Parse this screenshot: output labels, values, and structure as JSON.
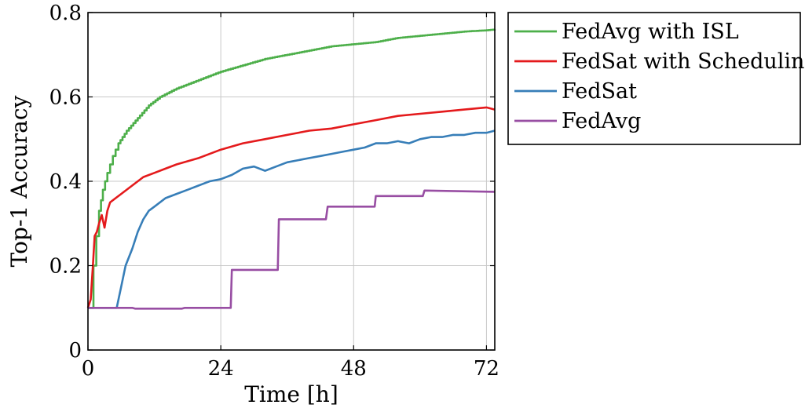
{
  "chart_data": {
    "type": "line",
    "xlabel": "Time [h]",
    "ylabel": "Top-1 Accuracy",
    "xlim": [
      0,
      73.5
    ],
    "ylim": [
      0,
      0.8
    ],
    "xticks": [
      0,
      24,
      48,
      72
    ],
    "yticks": [
      0,
      0.2,
      0.4,
      0.6,
      0.8
    ],
    "xtick_labels": [
      "0",
      "24",
      "48",
      "72"
    ],
    "ytick_labels": [
      "0",
      "0.2",
      "0.4",
      "0.6",
      "0.8"
    ],
    "grid": true,
    "legend_position": "outside-right",
    "series": [
      {
        "name": "FedAvg with ISL",
        "color": "#4daf4a",
        "step": true,
        "points": [
          [
            0,
            0.1
          ],
          [
            0.7,
            0.1
          ],
          [
            1,
            0.2
          ],
          [
            1.5,
            0.27
          ],
          [
            2,
            0.33
          ],
          [
            2.7,
            0.38
          ],
          [
            3.5,
            0.42
          ],
          [
            4.5,
            0.46
          ],
          [
            5.5,
            0.49
          ],
          [
            7,
            0.52
          ],
          [
            9,
            0.55
          ],
          [
            11,
            0.58
          ],
          [
            13,
            0.6
          ],
          [
            16,
            0.62
          ],
          [
            20,
            0.64
          ],
          [
            24,
            0.66
          ],
          [
            28,
            0.675
          ],
          [
            32,
            0.69
          ],
          [
            36,
            0.7
          ],
          [
            40,
            0.71
          ],
          [
            44,
            0.72
          ],
          [
            48,
            0.725
          ],
          [
            52,
            0.73
          ],
          [
            56,
            0.74
          ],
          [
            60,
            0.745
          ],
          [
            64,
            0.75
          ],
          [
            68,
            0.755
          ],
          [
            72,
            0.758
          ],
          [
            73.5,
            0.76
          ]
        ]
      },
      {
        "name": "FedSat with Scheduling",
        "color": "#e41a1c",
        "step": false,
        "points": [
          [
            0,
            0.1
          ],
          [
            0.5,
            0.12
          ],
          [
            0.9,
            0.2
          ],
          [
            1.2,
            0.27
          ],
          [
            1.6,
            0.28
          ],
          [
            2,
            0.3
          ],
          [
            2.5,
            0.32
          ],
          [
            3,
            0.29
          ],
          [
            3.5,
            0.33
          ],
          [
            4,
            0.35
          ],
          [
            5,
            0.36
          ],
          [
            6,
            0.37
          ],
          [
            8,
            0.39
          ],
          [
            10,
            0.41
          ],
          [
            12,
            0.42
          ],
          [
            14,
            0.43
          ],
          [
            16,
            0.44
          ],
          [
            20,
            0.455
          ],
          [
            24,
            0.475
          ],
          [
            28,
            0.49
          ],
          [
            32,
            0.5
          ],
          [
            36,
            0.51
          ],
          [
            40,
            0.52
          ],
          [
            44,
            0.525
          ],
          [
            48,
            0.535
          ],
          [
            52,
            0.545
          ],
          [
            56,
            0.555
          ],
          [
            60,
            0.56
          ],
          [
            64,
            0.565
          ],
          [
            68,
            0.57
          ],
          [
            72,
            0.575
          ],
          [
            73.5,
            0.57
          ]
        ]
      },
      {
        "name": "FedSat",
        "color": "#377eb8",
        "step": false,
        "points": [
          [
            0,
            0.1
          ],
          [
            4,
            0.1
          ],
          [
            5.2,
            0.1
          ],
          [
            6,
            0.15
          ],
          [
            6.8,
            0.2
          ],
          [
            8,
            0.24
          ],
          [
            9,
            0.28
          ],
          [
            10,
            0.31
          ],
          [
            11,
            0.33
          ],
          [
            12,
            0.34
          ],
          [
            14,
            0.36
          ],
          [
            16,
            0.37
          ],
          [
            18,
            0.38
          ],
          [
            20,
            0.39
          ],
          [
            22,
            0.4
          ],
          [
            24,
            0.405
          ],
          [
            26,
            0.415
          ],
          [
            28,
            0.43
          ],
          [
            30,
            0.435
          ],
          [
            32,
            0.425
          ],
          [
            34,
            0.435
          ],
          [
            36,
            0.445
          ],
          [
            38,
            0.45
          ],
          [
            40,
            0.455
          ],
          [
            42,
            0.46
          ],
          [
            44,
            0.465
          ],
          [
            46,
            0.47
          ],
          [
            48,
            0.475
          ],
          [
            50,
            0.48
          ],
          [
            52,
            0.49
          ],
          [
            54,
            0.49
          ],
          [
            56,
            0.495
          ],
          [
            58,
            0.49
          ],
          [
            60,
            0.5
          ],
          [
            62,
            0.505
          ],
          [
            64,
            0.505
          ],
          [
            66,
            0.51
          ],
          [
            68,
            0.51
          ],
          [
            70,
            0.515
          ],
          [
            72,
            0.515
          ],
          [
            73.5,
            0.52
          ]
        ]
      },
      {
        "name": "FedAvg",
        "color": "#984ea3",
        "step": false,
        "points": [
          [
            0,
            0.1
          ],
          [
            8,
            0.1
          ],
          [
            8.5,
            0.098
          ],
          [
            17,
            0.098
          ],
          [
            17.5,
            0.1
          ],
          [
            25.8,
            0.1
          ],
          [
            26,
            0.19
          ],
          [
            34.3,
            0.19
          ],
          [
            34.5,
            0.31
          ],
          [
            43,
            0.31
          ],
          [
            43.3,
            0.34
          ],
          [
            51.8,
            0.34
          ],
          [
            52,
            0.365
          ],
          [
            60.5,
            0.365
          ],
          [
            60.8,
            0.378
          ],
          [
            73.5,
            0.375
          ]
        ]
      }
    ]
  }
}
